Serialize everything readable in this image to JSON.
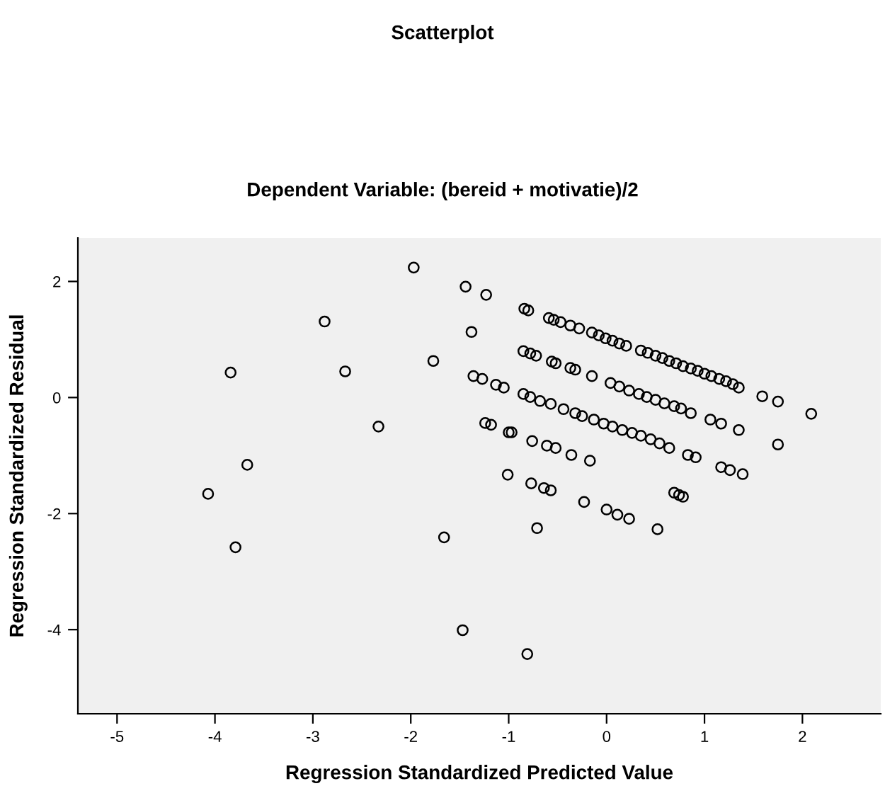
{
  "chart_data": {
    "type": "scatter",
    "title": "Scatterplot",
    "subtitle": "Dependent Variable: (bereid + motivatie)/2",
    "xlabel": "Regression Standardized Predicted Value",
    "ylabel": "Regression Standardized Residual",
    "xlim": [
      -5.4,
      2.8
    ],
    "xticks": [
      -5,
      -4,
      -3,
      -2,
      -1,
      0,
      1,
      2
    ],
    "ylim": [
      -5.45,
      2.75
    ],
    "yticks": [
      -4,
      -2,
      0,
      2
    ],
    "grid": false,
    "marker": "circle",
    "series": [
      {
        "color": "#000000",
        "x": [
          -1.97,
          -1.44,
          -1.23,
          -2.88,
          -1.38,
          -3.84,
          -2.67,
          -1.77,
          -1.36,
          -1.27,
          -1.13,
          -1.05,
          -2.33,
          -1.24,
          -1.18,
          -1.0,
          -3.67,
          -4.07,
          -1.01,
          -1.66,
          -3.79,
          -1.47,
          -0.84,
          -0.8,
          -0.59,
          -0.54,
          -0.47,
          -0.37,
          -0.28,
          -0.15,
          -0.08,
          -0.01,
          0.06,
          0.13,
          0.2,
          0.35,
          0.42,
          0.5,
          0.57,
          0.64,
          0.71,
          0.78,
          0.86,
          0.93,
          1.0,
          1.07,
          1.15,
          1.22,
          1.29,
          1.35,
          1.59,
          1.75,
          2.09,
          1.75,
          -0.85,
          -0.78,
          -0.72,
          -0.56,
          -0.52,
          -0.37,
          -0.32,
          -0.15,
          0.04,
          0.13,
          0.23,
          0.33,
          0.41,
          0.5,
          0.59,
          0.69,
          0.76,
          0.86,
          1.06,
          1.17,
          1.35,
          -0.85,
          -0.78,
          -0.68,
          -0.57,
          -0.44,
          -0.32,
          -0.25,
          -0.13,
          -0.03,
          0.06,
          0.16,
          0.26,
          0.35,
          0.45,
          0.54,
          0.64,
          0.83,
          0.91,
          1.17,
          1.26,
          1.39,
          -0.97,
          -0.76,
          -0.61,
          -0.52,
          -0.36,
          -0.17,
          -0.77,
          -0.64,
          -0.57,
          -0.23,
          0.0,
          0.11,
          0.23,
          0.52,
          0.69,
          0.74,
          0.78,
          -0.71,
          -0.81
        ],
        "values": [
          2.24,
          1.91,
          1.77,
          1.31,
          1.13,
          0.43,
          0.45,
          0.63,
          0.37,
          0.32,
          0.22,
          0.17,
          -0.5,
          -0.44,
          -0.47,
          -0.6,
          -1.16,
          -1.66,
          -1.33,
          -2.41,
          -2.58,
          -4.01,
          1.53,
          1.5,
          1.37,
          1.34,
          1.3,
          1.24,
          1.19,
          1.12,
          1.07,
          1.02,
          0.98,
          0.93,
          0.89,
          0.81,
          0.77,
          0.72,
          0.68,
          0.63,
          0.59,
          0.54,
          0.5,
          0.46,
          0.41,
          0.37,
          0.32,
          0.28,
          0.23,
          0.17,
          0.02,
          -0.07,
          -0.28,
          -0.81,
          0.8,
          0.76,
          0.72,
          0.62,
          0.59,
          0.51,
          0.48,
          0.37,
          0.25,
          0.19,
          0.12,
          0.06,
          0.01,
          -0.04,
          -0.1,
          -0.15,
          -0.19,
          -0.27,
          -0.38,
          -0.45,
          -0.56,
          0.06,
          0.01,
          -0.06,
          -0.11,
          -0.2,
          -0.27,
          -0.32,
          -0.38,
          -0.45,
          -0.5,
          -0.56,
          -0.61,
          -0.66,
          -0.72,
          -0.79,
          -0.87,
          -0.99,
          -1.03,
          -1.2,
          -1.25,
          -1.32,
          -0.6,
          -0.75,
          -0.83,
          -0.87,
          -0.99,
          -1.09,
          -1.48,
          -1.56,
          -1.6,
          -1.8,
          -1.93,
          -2.02,
          -2.09,
          -2.27,
          -1.64,
          -1.68,
          -1.71,
          -2.25,
          -4.42
        ]
      }
    ]
  }
}
